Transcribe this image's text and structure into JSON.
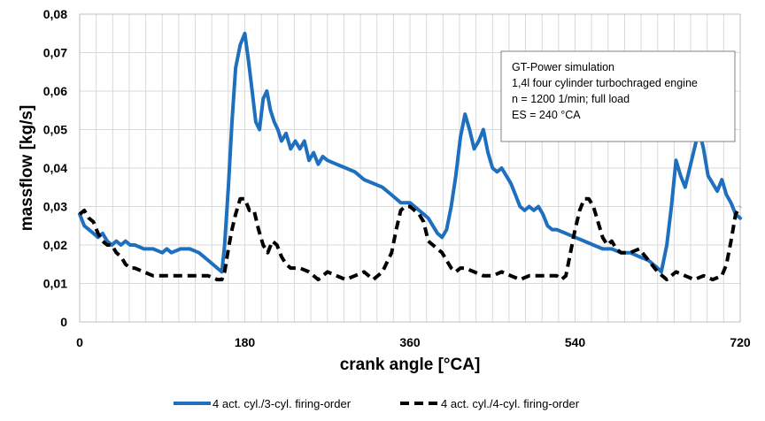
{
  "chart_data": {
    "type": "line",
    "title": "",
    "xlabel": "crank angle [°CA]",
    "ylabel": "massflow [kg/s]",
    "xlim": [
      0,
      720
    ],
    "ylim": [
      0,
      0.08
    ],
    "x_ticks": [
      0,
      180,
      360,
      540,
      720
    ],
    "x_tick_labels": [
      "0",
      "180",
      "360",
      "540",
      "720"
    ],
    "x_minor_grid_step": 18,
    "y_ticks": [
      0,
      0.01,
      0.02,
      0.03,
      0.04,
      0.05,
      0.06,
      0.07,
      0.08
    ],
    "y_tick_labels": [
      "0",
      "0,01",
      "0,02",
      "0,03",
      "0,04",
      "0,05",
      "0,06",
      "0,07",
      "0,08"
    ],
    "grid": true,
    "legend_position": "bottom-center",
    "annotation": {
      "lines": [
        "GT-Power simulation",
        "1,4l four cylinder turbochraged engine",
        "n = 1200 1/min; full load",
        "ES = 240 °CA"
      ]
    },
    "series": [
      {
        "name": "4 act. cyl./3-cyl. firing-order",
        "color": "#1f6fbf",
        "style": "solid",
        "x": [
          0,
          5,
          10,
          15,
          20,
          25,
          30,
          35,
          40,
          45,
          50,
          55,
          60,
          70,
          80,
          90,
          95,
          100,
          110,
          120,
          130,
          140,
          150,
          155,
          158,
          162,
          166,
          170,
          175,
          180,
          184,
          188,
          192,
          196,
          200,
          204,
          208,
          212,
          216,
          220,
          225,
          230,
          235,
          240,
          245,
          250,
          255,
          260,
          265,
          270,
          280,
          290,
          300,
          310,
          320,
          330,
          340,
          350,
          360,
          370,
          375,
          380,
          385,
          390,
          395,
          400,
          405,
          410,
          415,
          420,
          425,
          430,
          435,
          440,
          445,
          450,
          455,
          460,
          465,
          470,
          475,
          480,
          485,
          490,
          495,
          500,
          505,
          510,
          515,
          520,
          530,
          540,
          550,
          560,
          570,
          580,
          590,
          600,
          610,
          620,
          630,
          634,
          640,
          645,
          650,
          655,
          660,
          665,
          670,
          675,
          680,
          685,
          690,
          695,
          700,
          705,
          710,
          715,
          720
        ],
        "values": [
          0.028,
          0.025,
          0.024,
          0.023,
          0.022,
          0.023,
          0.021,
          0.02,
          0.021,
          0.02,
          0.021,
          0.02,
          0.02,
          0.019,
          0.019,
          0.018,
          0.019,
          0.018,
          0.019,
          0.019,
          0.018,
          0.016,
          0.014,
          0.013,
          0.02,
          0.035,
          0.052,
          0.066,
          0.072,
          0.075,
          0.068,
          0.06,
          0.052,
          0.05,
          0.058,
          0.06,
          0.055,
          0.052,
          0.05,
          0.047,
          0.049,
          0.045,
          0.047,
          0.045,
          0.047,
          0.042,
          0.044,
          0.041,
          0.043,
          0.042,
          0.041,
          0.04,
          0.039,
          0.037,
          0.036,
          0.035,
          0.033,
          0.031,
          0.031,
          0.029,
          0.028,
          0.027,
          0.025,
          0.023,
          0.022,
          0.024,
          0.03,
          0.038,
          0.048,
          0.054,
          0.05,
          0.045,
          0.047,
          0.05,
          0.044,
          0.04,
          0.039,
          0.04,
          0.038,
          0.036,
          0.033,
          0.03,
          0.029,
          0.03,
          0.029,
          0.03,
          0.028,
          0.025,
          0.024,
          0.024,
          0.023,
          0.022,
          0.021,
          0.02,
          0.019,
          0.019,
          0.018,
          0.018,
          0.017,
          0.016,
          0.014,
          0.013,
          0.02,
          0.03,
          0.042,
          0.038,
          0.035,
          0.04,
          0.045,
          0.05,
          0.045,
          0.038,
          0.036,
          0.034,
          0.037,
          0.033,
          0.031,
          0.028,
          0.027
        ]
      },
      {
        "name": "4 act. cyl./4-cyl. firing-order",
        "color": "#000000",
        "style": "dashed",
        "x": [
          0,
          5,
          10,
          15,
          20,
          25,
          30,
          35,
          40,
          45,
          50,
          55,
          60,
          70,
          80,
          90,
          100,
          110,
          120,
          130,
          140,
          150,
          155,
          158,
          162,
          166,
          170,
          175,
          180,
          185,
          190,
          195,
          200,
          205,
          210,
          215,
          220,
          225,
          230,
          240,
          250,
          260,
          270,
          280,
          290,
          300,
          310,
          320,
          330,
          340,
          345,
          350,
          355,
          360,
          365,
          370,
          375,
          380,
          385,
          390,
          395,
          400,
          405,
          410,
          415,
          420,
          430,
          440,
          450,
          460,
          470,
          480,
          490,
          500,
          510,
          520,
          525,
          530,
          535,
          540,
          545,
          550,
          555,
          560,
          565,
          570,
          575,
          580,
          585,
          590,
          600,
          610,
          620,
          630,
          640,
          650,
          660,
          670,
          680,
          690,
          700,
          705,
          710,
          715,
          720
        ],
        "values": [
          0.028,
          0.029,
          0.027,
          0.026,
          0.023,
          0.021,
          0.02,
          0.02,
          0.018,
          0.017,
          0.015,
          0.014,
          0.014,
          0.013,
          0.012,
          0.012,
          0.012,
          0.012,
          0.012,
          0.012,
          0.012,
          0.011,
          0.011,
          0.013,
          0.019,
          0.024,
          0.028,
          0.032,
          0.032,
          0.029,
          0.029,
          0.024,
          0.02,
          0.018,
          0.021,
          0.02,
          0.017,
          0.015,
          0.014,
          0.014,
          0.013,
          0.011,
          0.013,
          0.012,
          0.011,
          0.012,
          0.013,
          0.011,
          0.013,
          0.018,
          0.024,
          0.029,
          0.03,
          0.03,
          0.029,
          0.028,
          0.026,
          0.021,
          0.02,
          0.019,
          0.018,
          0.016,
          0.014,
          0.013,
          0.014,
          0.014,
          0.013,
          0.012,
          0.012,
          0.013,
          0.012,
          0.011,
          0.012,
          0.012,
          0.012,
          0.012,
          0.011,
          0.012,
          0.018,
          0.024,
          0.029,
          0.032,
          0.032,
          0.03,
          0.026,
          0.022,
          0.02,
          0.021,
          0.019,
          0.018,
          0.018,
          0.019,
          0.016,
          0.013,
          0.011,
          0.013,
          0.012,
          0.011,
          0.012,
          0.011,
          0.012,
          0.015,
          0.021,
          0.028,
          0.03
        ]
      }
    ]
  }
}
